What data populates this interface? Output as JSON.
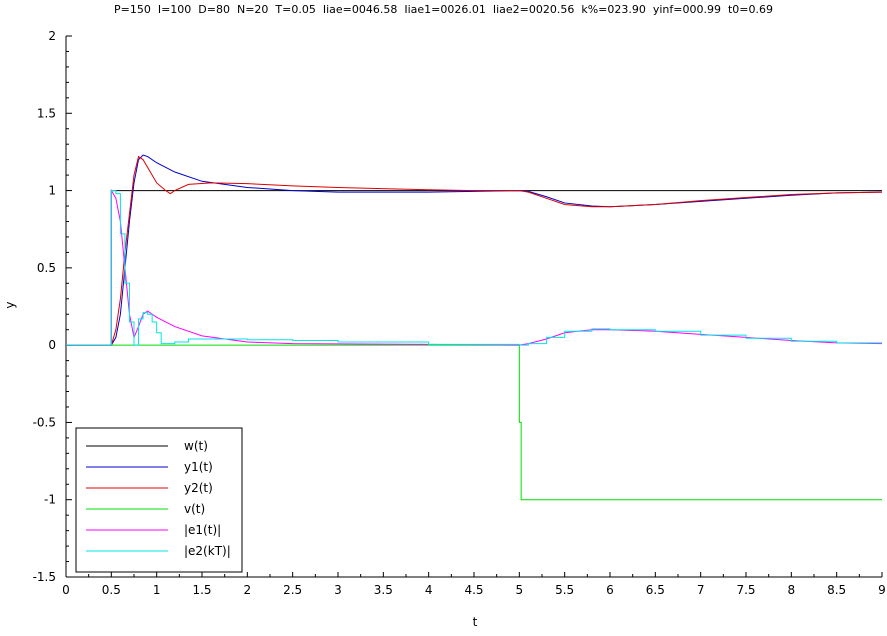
{
  "chart_data": {
    "type": "line",
    "title": "P=150  I=100  D=80  N=20  T=0.05  Iiae=0046.58  Iiae1=0026.01  Iiae2=0020.56  k%=023.90  yinf=000.99  t0=0.69",
    "xlabel": "t",
    "ylabel": "y",
    "xlim": [
      0,
      9
    ],
    "ylim": [
      -1.5,
      2
    ],
    "xticks": [
      "0",
      "0.5",
      "1",
      "1.5",
      "2",
      "2.5",
      "3",
      "3.5",
      "4",
      "4.5",
      "5",
      "5.5",
      "6",
      "6.5",
      "7",
      "7.5",
      "8",
      "8.5",
      "9"
    ],
    "yticks": [
      "-1.5",
      "-1",
      "-0.5",
      "0",
      "0.5",
      "1",
      "1.5",
      "2"
    ],
    "legend_position": "bottom-left",
    "series": [
      {
        "name": "w(t)",
        "color": "#000000",
        "step": true,
        "points": [
          [
            0,
            0
          ],
          [
            0.5,
            0
          ],
          [
            0.5,
            1
          ],
          [
            9,
            1
          ]
        ]
      },
      {
        "name": "y1(t)",
        "color": "#0000cc",
        "step": false,
        "points": [
          [
            0,
            0
          ],
          [
            0.5,
            0
          ],
          [
            0.55,
            0.05
          ],
          [
            0.6,
            0.2
          ],
          [
            0.65,
            0.5
          ],
          [
            0.7,
            0.8
          ],
          [
            0.75,
            1.05
          ],
          [
            0.8,
            1.2
          ],
          [
            0.85,
            1.23
          ],
          [
            0.9,
            1.22
          ],
          [
            1.0,
            1.18
          ],
          [
            1.2,
            1.12
          ],
          [
            1.5,
            1.06
          ],
          [
            2.0,
            1.02
          ],
          [
            2.5,
            1.0
          ],
          [
            3.0,
            0.99
          ],
          [
            4.0,
            0.99
          ],
          [
            4.5,
            0.995
          ],
          [
            5.0,
            1.0
          ],
          [
            5.1,
            0.995
          ],
          [
            5.3,
            0.96
          ],
          [
            5.5,
            0.92
          ],
          [
            5.8,
            0.9
          ],
          [
            6.0,
            0.895
          ],
          [
            6.5,
            0.91
          ],
          [
            7.0,
            0.93
          ],
          [
            7.5,
            0.95
          ],
          [
            8.0,
            0.97
          ],
          [
            8.5,
            0.985
          ],
          [
            9.0,
            0.99
          ]
        ]
      },
      {
        "name": "y2(t)",
        "color": "#dd0000",
        "step": false,
        "points": [
          [
            0,
            0
          ],
          [
            0.5,
            0
          ],
          [
            0.55,
            0.1
          ],
          [
            0.6,
            0.3
          ],
          [
            0.65,
            0.6
          ],
          [
            0.7,
            0.85
          ],
          [
            0.75,
            1.1
          ],
          [
            0.8,
            1.22
          ],
          [
            0.85,
            1.2
          ],
          [
            0.9,
            1.15
          ],
          [
            1.0,
            1.05
          ],
          [
            1.1,
            1.0
          ],
          [
            1.15,
            0.98
          ],
          [
            1.2,
            1.0
          ],
          [
            1.35,
            1.04
          ],
          [
            1.6,
            1.05
          ],
          [
            2.0,
            1.045
          ],
          [
            2.5,
            1.03
          ],
          [
            3.0,
            1.02
          ],
          [
            4.0,
            1.005
          ],
          [
            4.5,
            1.0
          ],
          [
            5.0,
            1.0
          ],
          [
            5.1,
            0.99
          ],
          [
            5.3,
            0.95
          ],
          [
            5.5,
            0.91
          ],
          [
            5.8,
            0.895
          ],
          [
            6.0,
            0.895
          ],
          [
            6.5,
            0.91
          ],
          [
            7.0,
            0.935
          ],
          [
            7.5,
            0.955
          ],
          [
            8.0,
            0.975
          ],
          [
            8.5,
            0.985
          ],
          [
            9.0,
            0.99
          ]
        ]
      },
      {
        "name": "v(t)",
        "color": "#00dd00",
        "step": true,
        "points": [
          [
            0,
            0
          ],
          [
            5.0,
            0
          ],
          [
            5.0,
            -0.5
          ],
          [
            5.02,
            -0.5
          ],
          [
            5.02,
            -1
          ],
          [
            9,
            -1
          ]
        ]
      },
      {
        "name": "|e1(t)|",
        "color": "#ff00ff",
        "step": false,
        "points": [
          [
            0,
            0
          ],
          [
            0.5,
            0
          ],
          [
            0.5,
            1
          ],
          [
            0.55,
            0.95
          ],
          [
            0.6,
            0.8
          ],
          [
            0.65,
            0.5
          ],
          [
            0.7,
            0.2
          ],
          [
            0.75,
            0.05
          ],
          [
            0.8,
            0.12
          ],
          [
            0.85,
            0.2
          ],
          [
            0.9,
            0.22
          ],
          [
            1.0,
            0.18
          ],
          [
            1.2,
            0.12
          ],
          [
            1.5,
            0.06
          ],
          [
            2.0,
            0.02
          ],
          [
            2.5,
            0.01
          ],
          [
            4.0,
            0.005
          ],
          [
            5.0,
            0.0
          ],
          [
            5.1,
            0.01
          ],
          [
            5.3,
            0.04
          ],
          [
            5.5,
            0.08
          ],
          [
            5.8,
            0.1
          ],
          [
            6.0,
            0.1
          ],
          [
            6.5,
            0.09
          ],
          [
            7.0,
            0.07
          ],
          [
            7.5,
            0.05
          ],
          [
            8.0,
            0.03
          ],
          [
            8.5,
            0.015
          ],
          [
            9.0,
            0.01
          ]
        ]
      },
      {
        "name": "|e2(kT)|",
        "color": "#00e5e5",
        "step": true,
        "points": [
          [
            0,
            0
          ],
          [
            0.5,
            0
          ],
          [
            0.5,
            1
          ],
          [
            0.55,
            1
          ],
          [
            0.55,
            0.98
          ],
          [
            0.6,
            0.98
          ],
          [
            0.6,
            0.72
          ],
          [
            0.65,
            0.72
          ],
          [
            0.65,
            0.4
          ],
          [
            0.7,
            0.4
          ],
          [
            0.7,
            0.15
          ],
          [
            0.75,
            0.15
          ],
          [
            0.75,
            0.0
          ],
          [
            0.8,
            0.0
          ],
          [
            0.8,
            0.17
          ],
          [
            0.85,
            0.17
          ],
          [
            0.85,
            0.21
          ],
          [
            0.9,
            0.21
          ],
          [
            0.9,
            0.2
          ],
          [
            0.95,
            0.2
          ],
          [
            0.95,
            0.15
          ],
          [
            1.0,
            0.15
          ],
          [
            1.0,
            0.08
          ],
          [
            1.05,
            0.08
          ],
          [
            1.05,
            0.01
          ],
          [
            1.2,
            0.01
          ],
          [
            1.2,
            0.02
          ],
          [
            1.35,
            0.02
          ],
          [
            1.35,
            0.04
          ],
          [
            1.6,
            0.04
          ],
          [
            1.6,
            0.04
          ],
          [
            2.0,
            0.04
          ],
          [
            2.0,
            0.035
          ],
          [
            2.5,
            0.035
          ],
          [
            2.5,
            0.03
          ],
          [
            3.0,
            0.03
          ],
          [
            3.0,
            0.02
          ],
          [
            4.0,
            0.02
          ],
          [
            4.0,
            0.005
          ],
          [
            5.0,
            0.005
          ],
          [
            5.0,
            0.0
          ],
          [
            5.1,
            0.0
          ],
          [
            5.1,
            0.01
          ],
          [
            5.3,
            0.01
          ],
          [
            5.3,
            0.05
          ],
          [
            5.5,
            0.05
          ],
          [
            5.5,
            0.09
          ],
          [
            5.8,
            0.09
          ],
          [
            5.8,
            0.105
          ],
          [
            6.0,
            0.105
          ],
          [
            6.0,
            0.1
          ],
          [
            6.5,
            0.1
          ],
          [
            6.5,
            0.09
          ],
          [
            7.0,
            0.09
          ],
          [
            7.0,
            0.065
          ],
          [
            7.5,
            0.065
          ],
          [
            7.5,
            0.045
          ],
          [
            8.0,
            0.045
          ],
          [
            8.0,
            0.025
          ],
          [
            8.5,
            0.025
          ],
          [
            8.5,
            0.015
          ],
          [
            9.0,
            0.015
          ]
        ]
      }
    ]
  }
}
